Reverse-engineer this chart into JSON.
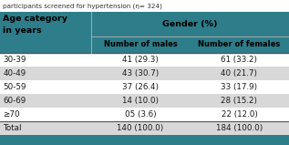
{
  "caption": "participants screened for hypertension (η= 324)",
  "col0_header_line1": "Age category",
  "col0_header_line2": "in years",
  "col1_header_top": "Gender (%)",
  "col1_header_sub": "Number of males",
  "col2_header_sub": "Number of females",
  "rows": [
    [
      "30-39",
      "41 (29.3)",
      "61 (33.2)"
    ],
    [
      "40-49",
      "43 (30.7)",
      "40 (21.7)"
    ],
    [
      "50-59",
      "37 (26.4)",
      "33 (17.9)"
    ],
    [
      "60-69",
      "14 (10.0)",
      "28 (15.2)"
    ],
    [
      "≥70",
      "05 (3.6)",
      "22 (12.0)"
    ],
    [
      "Total",
      "140 (100.0)",
      "184 (100.0)"
    ]
  ],
  "teal_bg": "#2d7d8a",
  "white_bg": "#ffffff",
  "light_gray_bg": "#d8d8d8",
  "line_color": "#888888",
  "dark_line_color": "#555555",
  "caption_color": "#333333",
  "text_color": "#1a1a1a",
  "figsize": [
    3.17,
    1.59
  ],
  "dpi": 100
}
